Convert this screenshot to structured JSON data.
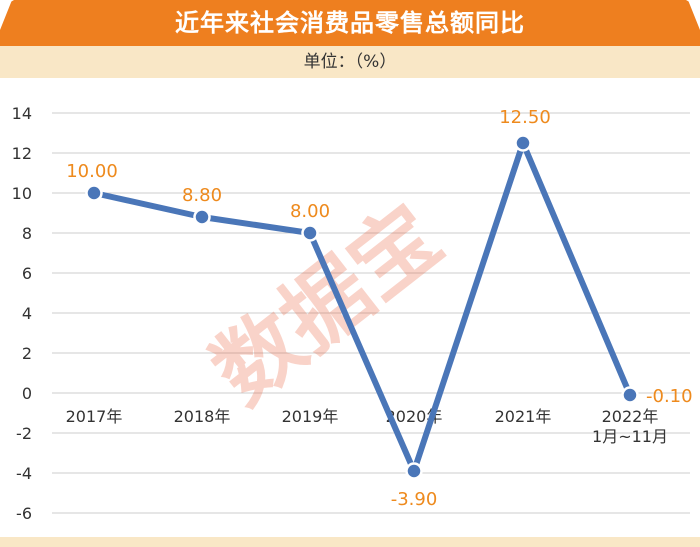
{
  "header": {
    "title": "近年来社会消费品零售总额同比",
    "unit": "单位：（%）",
    "colors": {
      "band": "#ee7f1f",
      "unit_band": "#f9e7c6"
    }
  },
  "watermark": "数据宝",
  "chart_data": {
    "type": "line",
    "title": "近年来社会消费品零售总额同比",
    "ylabel": "单位：（%）",
    "xlabel": "",
    "categories": [
      [
        "2017年"
      ],
      [
        "2018年"
      ],
      [
        "2019年"
      ],
      [
        "2020年"
      ],
      [
        "2021年"
      ],
      [
        "2022年",
        "1月~11月"
      ]
    ],
    "series": [
      {
        "values": [
          10.0,
          8.8,
          8.0,
          -3.9,
          12.5,
          -0.1
        ],
        "labels": [
          "10.00",
          "8.80",
          "8.00",
          "-3.90",
          "12.50",
          "-0.10"
        ],
        "color": "#4a76b8"
      }
    ],
    "yticks": [
      "14",
      "12",
      "10",
      "8",
      "6",
      "4",
      "2",
      "0",
      "-2",
      "-4",
      "-6"
    ],
    "ytick_values": [
      14,
      12,
      10,
      8,
      6,
      4,
      2,
      0,
      -2,
      -4,
      -6
    ],
    "ylim": [
      -6,
      14
    ],
    "grid": true,
    "label_color": "#ee8a1d"
  }
}
